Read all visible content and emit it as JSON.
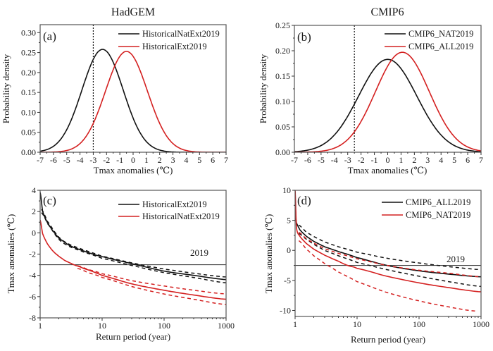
{
  "figure": {
    "colors": {
      "black": "#111111",
      "red": "#d42020",
      "frame": "#555555",
      "refline": "#444444"
    }
  },
  "chart_data": [
    {
      "id": "a",
      "type": "line",
      "panel_label": "(a)",
      "title": "HadGEM",
      "xlabel": "Tmax anomalies (℃)",
      "ylabel": "Probability density",
      "xlim": [
        -7,
        7
      ],
      "ylim": [
        0,
        0.32
      ],
      "xscale": "linear",
      "xticks": [
        -7,
        -6,
        -5,
        -4,
        -3,
        -2,
        -1,
        0,
        1,
        2,
        3,
        4,
        5,
        6,
        7
      ],
      "xtick_labels": [
        "-7",
        "-6",
        "-5",
        "-4",
        "-3",
        "-2",
        "-1",
        "0",
        "1",
        "2",
        "3",
        "4",
        "5",
        "6",
        "7"
      ],
      "yticks": [
        0,
        0.05,
        0.1,
        0.15,
        0.2,
        0.25,
        0.3
      ],
      "ytick_labels": [
        "0.00",
        "0.05",
        "0.10",
        "0.15",
        "0.20",
        "0.25",
        "0.30"
      ],
      "legend_position": "top-right",
      "vline": {
        "x": -3,
        "style": "dotted"
      },
      "series": [
        {
          "name": "HistoricalNatExt2019",
          "color": "black",
          "kind": "gaussian",
          "mean": -2.3,
          "sd": 1.55,
          "peak": 0.258
        },
        {
          "name": "HistoricalExt2019",
          "color": "red",
          "kind": "gaussian",
          "mean": -0.5,
          "sd": 1.58,
          "peak": 0.253
        }
      ]
    },
    {
      "id": "b",
      "type": "line",
      "panel_label": "(b)",
      "title": "CMIP6",
      "xlabel": "Tmax anomalies (℃)",
      "ylabel": "Probability density",
      "xlim": [
        -7,
        7
      ],
      "ylim": [
        0,
        0.25
      ],
      "xscale": "linear",
      "xticks": [
        -7,
        -6,
        -5,
        -4,
        -3,
        -2,
        -1,
        0,
        1,
        2,
        3,
        4,
        5,
        6,
        7
      ],
      "xtick_labels": [
        "-7",
        "-6",
        "-5",
        "-4",
        "-3",
        "-2",
        "-1",
        "0",
        "1",
        "2",
        "3",
        "4",
        "5",
        "6",
        "7"
      ],
      "yticks": [
        0,
        0.05,
        0.1,
        0.15,
        0.2,
        0.25
      ],
      "ytick_labels": [
        "0.00",
        "0.05",
        "0.10",
        "0.15",
        "0.20",
        "0.25"
      ],
      "legend_position": "top-right",
      "vline": {
        "x": -2.5,
        "style": "dotted"
      },
      "series": [
        {
          "name": "CMIP6_NAT2019",
          "color": "black",
          "kind": "gaussian",
          "mean": 0.0,
          "sd": 2.18,
          "peak": 0.183
        },
        {
          "name": "CMIP6_ALL2019",
          "color": "red",
          "kind": "gaussian",
          "mean": 1.1,
          "sd": 2.02,
          "peak": 0.197
        }
      ]
    },
    {
      "id": "c",
      "type": "line",
      "panel_label": "(c)",
      "title": "",
      "xlabel": "Return period (year)",
      "ylabel": "Tmax anomalies (℃)",
      "xlim": [
        1,
        1000
      ],
      "ylim": [
        -8,
        4
      ],
      "xscale": "log",
      "xticks": [
        1,
        10,
        100,
        1000
      ],
      "xtick_labels": [
        "1",
        "10",
        "100",
        "1000"
      ],
      "yticks": [
        -8,
        -6,
        -4,
        -2,
        0,
        2,
        4
      ],
      "ytick_labels": [
        "-8",
        "-6",
        "-4",
        "-2",
        "0",
        "2",
        "4"
      ],
      "legend_position": "top-right",
      "hline": {
        "y": -3,
        "label": "2019"
      },
      "series": [
        {
          "name": "HistoricalExt2019",
          "color": "black",
          "style": "solid",
          "x": [
            1,
            1.1,
            1.3,
            1.6,
            2,
            3,
            5,
            8,
            15,
            35,
            100,
            300,
            1000
          ],
          "y": [
            3.8,
            2.0,
            1.0,
            0.2,
            -0.5,
            -1.2,
            -1.7,
            -2.1,
            -2.5,
            -3.0,
            -3.6,
            -4.0,
            -4.4
          ]
        },
        {
          "name": "HistoricalExt2019 upper",
          "color": "black",
          "style": "dashed",
          "legend": false,
          "x": [
            1.05,
            1.3,
            2,
            3,
            5,
            10,
            35,
            100,
            300,
            1000
          ],
          "y": [
            2.2,
            1.1,
            -0.4,
            -1.1,
            -1.6,
            -2.2,
            -2.9,
            -3.4,
            -3.8,
            -4.15
          ]
        },
        {
          "name": "HistoricalExt2019 lower",
          "color": "black",
          "style": "dashed",
          "legend": false,
          "x": [
            1.05,
            1.3,
            2,
            3,
            5,
            10,
            35,
            100,
            300,
            1000
          ],
          "y": [
            1.9,
            0.9,
            -0.6,
            -1.3,
            -1.8,
            -2.4,
            -3.15,
            -3.75,
            -4.2,
            -4.7
          ]
        },
        {
          "name": "HistoricalNatExt2019",
          "color": "red",
          "style": "solid",
          "x": [
            1,
            1.1,
            1.3,
            1.6,
            2,
            2.5,
            3.5,
            5,
            10,
            30,
            100,
            300,
            1000
          ],
          "y": [
            1.2,
            -0.1,
            -1.0,
            -1.7,
            -2.2,
            -2.6,
            -3.0,
            -3.35,
            -4.0,
            -4.8,
            -5.4,
            -5.85,
            -6.25
          ]
        },
        {
          "name": "HistoricalNatExt2019 upper",
          "color": "red",
          "style": "dashed",
          "legend": false,
          "x": [
            4,
            6,
            10,
            30,
            100,
            300,
            1000
          ],
          "y": [
            -3.1,
            -3.45,
            -3.85,
            -4.5,
            -5.0,
            -5.4,
            -5.75
          ]
        },
        {
          "name": "HistoricalNatExt2019 lower",
          "color": "red",
          "style": "dashed",
          "legend": false,
          "x": [
            4,
            6,
            10,
            30,
            100,
            300,
            1000
          ],
          "y": [
            -3.35,
            -3.75,
            -4.2,
            -5.05,
            -5.75,
            -6.25,
            -6.75
          ]
        }
      ]
    },
    {
      "id": "d",
      "type": "line",
      "panel_label": "(d)",
      "title": "",
      "xlabel": "Return period (year)",
      "ylabel": "Tmax anomalies (℃)",
      "xlim": [
        1,
        1000
      ],
      "ylim": [
        -11,
        10
      ],
      "xscale": "log",
      "xticks": [
        1,
        10,
        100,
        1000
      ],
      "xtick_labels": [
        "1",
        "10",
        "100",
        "1000"
      ],
      "yticks": [
        -10,
        -5,
        0,
        5,
        10
      ],
      "ytick_labels": [
        "-10",
        "-5",
        "0",
        "5",
        "10"
      ],
      "legend_position": "top-right",
      "hline": {
        "y": -2.5,
        "label": "2019"
      },
      "series": [
        {
          "name": "CMIP6_ALL2019",
          "color": "black",
          "style": "solid",
          "x": [
            1,
            1.05,
            1.2,
            1.5,
            2,
            3,
            5,
            10,
            30,
            100,
            300,
            1000
          ],
          "y": [
            6.2,
            4.6,
            3.4,
            2.4,
            1.5,
            0.6,
            -0.2,
            -1.2,
            -2.5,
            -3.4,
            -3.95,
            -4.4
          ]
        },
        {
          "name": "CMIP6_ALL2019 upper",
          "color": "black",
          "style": "dashed",
          "legend": false,
          "x": [
            1.15,
            1.5,
            2,
            3,
            5,
            10,
            30,
            100,
            300,
            1000
          ],
          "y": [
            4.2,
            3.1,
            2.3,
            1.4,
            0.6,
            -0.3,
            -1.3,
            -2.1,
            -2.7,
            -3.2
          ]
        },
        {
          "name": "CMIP6_ALL2019 lower",
          "color": "black",
          "style": "dashed",
          "legend": false,
          "x": [
            1.15,
            1.5,
            2,
            3,
            5,
            10,
            30,
            100,
            300,
            1000
          ],
          "y": [
            2.8,
            1.9,
            1.0,
            0.0,
            -0.9,
            -2.0,
            -3.2,
            -4.3,
            -5.2,
            -6.0
          ]
        },
        {
          "name": "CMIP6_NAT2019",
          "color": "red",
          "style": "solid",
          "x": [
            1,
            1.05,
            1.2,
            1.5,
            2,
            3,
            5,
            7,
            10,
            30,
            100,
            300,
            1000
          ],
          "y": [
            10,
            3.8,
            2.3,
            1.2,
            0.2,
            -0.8,
            -1.8,
            -2.5,
            -3.0,
            -4.3,
            -5.4,
            -6.2,
            -6.9
          ]
        },
        {
          "name": "CMIP6_NAT2019 upper",
          "color": "red",
          "style": "dashed",
          "legend": false,
          "x": [
            1.15,
            1.5,
            2,
            3,
            5,
            10,
            30,
            100,
            300,
            1000
          ],
          "y": [
            3.0,
            2.0,
            1.2,
            0.3,
            -0.5,
            -1.4,
            -2.5,
            -3.3,
            -3.8,
            -4.4
          ]
        },
        {
          "name": "CMIP6_NAT2019 lower",
          "color": "red",
          "style": "dashed",
          "legend": false,
          "x": [
            1.15,
            1.5,
            2,
            3,
            5,
            10,
            30,
            100,
            300,
            800
          ],
          "y": [
            1.6,
            0.3,
            -0.9,
            -2.2,
            -3.6,
            -5.2,
            -7.0,
            -8.4,
            -9.4,
            -10.1
          ]
        }
      ]
    }
  ]
}
